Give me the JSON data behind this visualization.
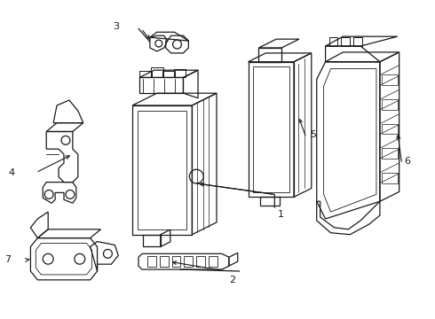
{
  "bg_color": "#ffffff",
  "line_color": "#1a1a1a",
  "lw": 0.9,
  "fig_w": 4.9,
  "fig_h": 3.6,
  "dpi": 100
}
